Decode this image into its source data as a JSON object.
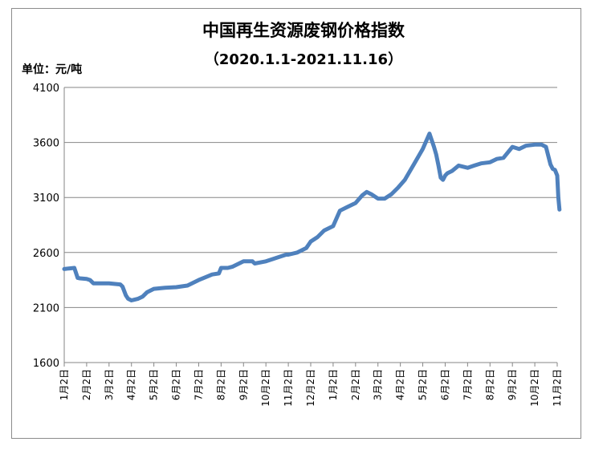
{
  "chart_data": {
    "type": "line",
    "title": "中国再生资源废钢价格指数",
    "subtitle": "（2020.1.1-2021.11.16）",
    "unit_label": "单位：元/吨",
    "ylim": [
      1600,
      4100
    ],
    "yticks": [
      1600,
      2100,
      2600,
      3100,
      3600,
      4100
    ],
    "grid": true,
    "legend": "none",
    "line_color": "#4f81bd",
    "categories": [
      "1月2日",
      "2月2日",
      "3月2日",
      "4月2日",
      "5月2日",
      "6月2日",
      "7月2日",
      "8月2日",
      "9月2日",
      "10月2日",
      "11月2日",
      "12月2日",
      "1月2日",
      "2月2日",
      "3月2日",
      "4月2日",
      "5月2日",
      "6月2日",
      "7月2日",
      "8月2日",
      "9月2日",
      "10月2日",
      "11月2日"
    ],
    "series": [
      {
        "x": [
          0,
          0.2,
          0.45,
          0.55,
          0.6,
          0.7,
          1.0,
          1.15,
          1.3,
          2.0,
          2.5,
          2.6,
          2.75,
          2.85,
          3.0,
          3.1,
          3.3,
          3.5,
          3.7,
          4.0,
          4.5,
          5.0,
          5.5,
          6.0,
          6.3,
          6.6,
          6.9,
          7.0,
          7.3,
          7.5,
          8.0,
          8.4,
          8.5,
          9.0,
          9.3,
          9.6,
          9.9,
          10.0,
          10.4,
          10.8,
          11.0,
          11.3,
          11.6,
          12.0,
          12.3,
          12.6,
          13.0,
          13.3,
          13.5,
          13.7,
          14.0,
          14.3,
          14.6,
          14.9,
          15.2,
          15.6,
          16.0,
          16.3,
          16.5,
          16.6,
          16.7,
          16.8,
          16.9,
          17.0,
          17.1,
          17.3,
          17.6,
          17.8,
          18.0,
          18.3,
          18.6,
          19.0,
          19.3,
          19.6,
          20.0,
          20.3,
          20.6,
          21.0,
          21.3,
          21.5,
          21.7,
          21.8,
          21.9,
          22.0,
          22.05,
          22.1
        ],
        "y": [
          2450,
          2455,
          2460,
          2400,
          2370,
          2365,
          2360,
          2350,
          2320,
          2320,
          2310,
          2290,
          2210,
          2180,
          2165,
          2170,
          2180,
          2200,
          2240,
          2270,
          2280,
          2285,
          2300,
          2350,
          2375,
          2400,
          2410,
          2460,
          2460,
          2470,
          2520,
          2520,
          2500,
          2520,
          2540,
          2560,
          2580,
          2580,
          2600,
          2640,
          2700,
          2740,
          2800,
          2840,
          2980,
          3010,
          3050,
          3120,
          3150,
          3130,
          3090,
          3090,
          3130,
          3190,
          3260,
          3400,
          3540,
          3680,
          3560,
          3490,
          3390,
          3280,
          3260,
          3300,
          3320,
          3340,
          3390,
          3380,
          3370,
          3390,
          3410,
          3420,
          3450,
          3460,
          3560,
          3540,
          3570,
          3580,
          3580,
          3560,
          3400,
          3360,
          3350,
          3300,
          3100,
          2990
        ]
      }
    ]
  }
}
